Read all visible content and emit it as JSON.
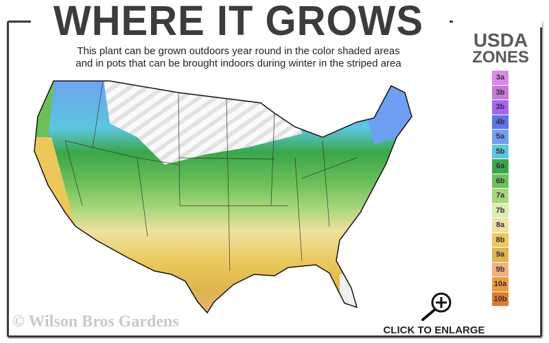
{
  "title": "WHERE IT GROWS",
  "subtitle_line1": "This plant can be grown outdoors year round in the color shaded areas",
  "subtitle_line2": "and in pots that can be brought indoors during winter in the striped area",
  "legend": {
    "title_line1": "USDA",
    "title_line2": "ZONES",
    "zones": [
      {
        "label": "3a",
        "color": "#d98ae6"
      },
      {
        "label": "3b",
        "color": "#c77ad6"
      },
      {
        "label": "3b",
        "color": "#a466f0"
      },
      {
        "label": "4b",
        "color": "#5b74e8"
      },
      {
        "label": "5a",
        "color": "#6f9ff2"
      },
      {
        "label": "5b",
        "color": "#5cc6e0"
      },
      {
        "label": "6a",
        "color": "#3aa64a"
      },
      {
        "label": "6b",
        "color": "#6cc05a"
      },
      {
        "label": "7a",
        "color": "#a6d67a"
      },
      {
        "label": "7b",
        "color": "#dcecae"
      },
      {
        "label": "8a",
        "color": "#efe1a0"
      },
      {
        "label": "8b",
        "color": "#ecc85a"
      },
      {
        "label": "9a",
        "color": "#dcb450"
      },
      {
        "label": "9b",
        "color": "#f2b07a"
      },
      {
        "label": "10a",
        "color": "#ee9a3a"
      },
      {
        "label": "10b",
        "color": "#e07a2a"
      }
    ]
  },
  "copyright": "© Wilson Bros Gardens",
  "enlarge": {
    "label": "CLICK TO ENLARGE",
    "icon": "zoom-in-icon"
  }
}
